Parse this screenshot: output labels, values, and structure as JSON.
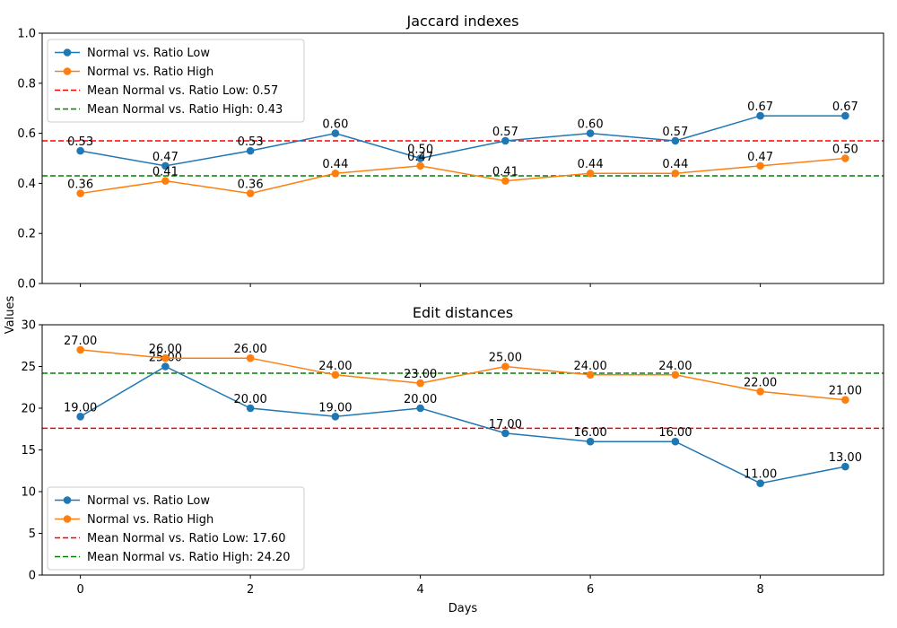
{
  "figure": {
    "shared_ylabel": "Values",
    "shared_xlabel": "Days",
    "colors": {
      "low": "#1f77b4",
      "high": "#ff7f0e",
      "mean_low": "#ff0000",
      "mean_high": "#008000"
    }
  },
  "chart_data": [
    {
      "type": "line",
      "title": "Jaccard indexes",
      "x": [
        0,
        1,
        2,
        3,
        4,
        5,
        6,
        7,
        8,
        9
      ],
      "xlim": [
        -0.45,
        9.45
      ],
      "ylim": [
        0.0,
        1.0
      ],
      "yticks": [
        0.0,
        0.2,
        0.4,
        0.6,
        0.8,
        1.0
      ],
      "ytick_labels": [
        "0.0",
        "0.2",
        "0.4",
        "0.6",
        "0.8",
        "1.0"
      ],
      "xticks": [
        0,
        2,
        4,
        6,
        8
      ],
      "xtick_labels": [],
      "legend_position": "upper-left",
      "series": [
        {
          "name": "Normal vs. Ratio Low",
          "color": "#1f77b4",
          "values": [
            0.53,
            0.47,
            0.53,
            0.6,
            0.5,
            0.57,
            0.6,
            0.57,
            0.67,
            0.67
          ],
          "labels": [
            "0.53",
            "0.47",
            "0.53",
            "0.60",
            "0.50",
            "0.57",
            "0.60",
            "0.57",
            "0.67",
            "0.67"
          ]
        },
        {
          "name": "Normal vs. Ratio High",
          "color": "#ff7f0e",
          "values": [
            0.36,
            0.41,
            0.36,
            0.44,
            0.47,
            0.41,
            0.44,
            0.44,
            0.47,
            0.5
          ],
          "labels": [
            "0.36",
            "0.41",
            "0.36",
            "0.44",
            "0.47",
            "0.41",
            "0.44",
            "0.44",
            "0.47",
            "0.50"
          ]
        }
      ],
      "mean_lines": [
        {
          "name": "Mean Normal vs. Ratio Low: 0.57",
          "value": 0.57,
          "color": "#ff0000"
        },
        {
          "name": "Mean Normal vs. Ratio High: 0.43",
          "value": 0.43,
          "color": "#008000"
        }
      ]
    },
    {
      "type": "line",
      "title": "Edit distances",
      "x": [
        0,
        1,
        2,
        3,
        4,
        5,
        6,
        7,
        8,
        9
      ],
      "xlim": [
        -0.45,
        9.45
      ],
      "ylim": [
        0,
        30
      ],
      "yticks": [
        0,
        5,
        10,
        15,
        20,
        25,
        30
      ],
      "ytick_labels": [
        "0",
        "5",
        "10",
        "15",
        "20",
        "25",
        "30"
      ],
      "xticks": [
        0,
        2,
        4,
        6,
        8
      ],
      "xtick_labels": [
        "0",
        "2",
        "4",
        "6",
        "8"
      ],
      "legend_position": "lower-left",
      "series": [
        {
          "name": "Normal vs. Ratio Low",
          "color": "#1f77b4",
          "values": [
            19,
            25,
            20,
            19,
            20,
            17,
            16,
            16,
            11,
            13
          ],
          "labels": [
            "19.00",
            "25.00",
            "20.00",
            "19.00",
            "20.00",
            "17.00",
            "16.00",
            "16.00",
            "11.00",
            "13.00"
          ]
        },
        {
          "name": "Normal vs. Ratio High",
          "color": "#ff7f0e",
          "values": [
            27,
            26,
            26,
            24,
            23,
            25,
            24,
            24,
            22,
            21
          ],
          "labels": [
            "27.00",
            "26.00",
            "26.00",
            "24.00",
            "23.00",
            "25.00",
            "24.00",
            "24.00",
            "22.00",
            "21.00"
          ]
        }
      ],
      "mean_lines": [
        {
          "name": "Mean Normal vs. Ratio Low: 17.60",
          "value": 17.6,
          "color": "#ff0000"
        },
        {
          "name": "Mean Normal vs. Ratio High: 24.20",
          "value": 24.2,
          "color": "#008000"
        }
      ]
    }
  ]
}
